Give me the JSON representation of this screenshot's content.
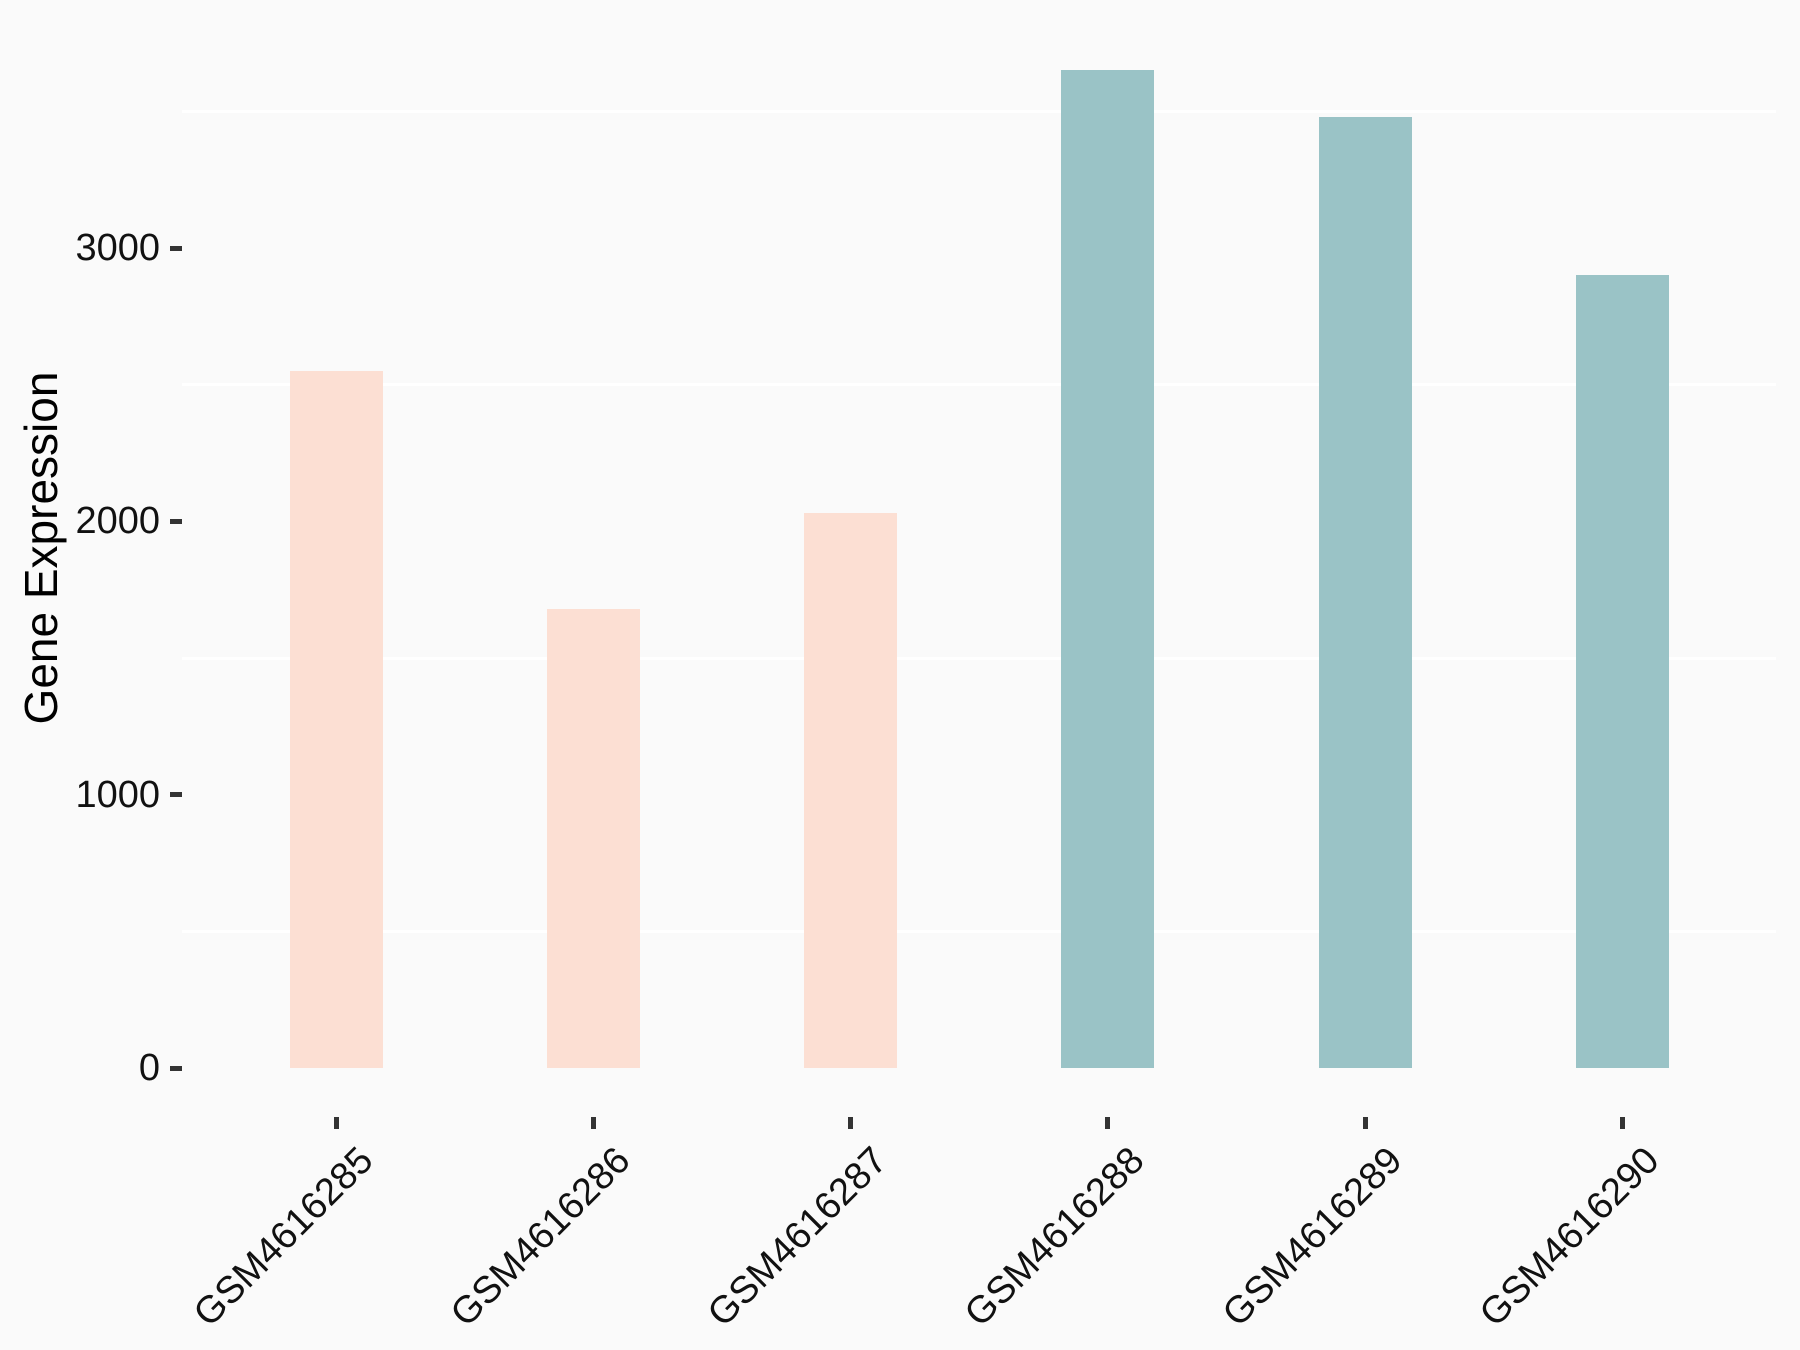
{
  "figure": {
    "background_color": "#fafafa",
    "grid_color": "#ffffff",
    "tick_mark_color": "#333333",
    "text_color": "#111111"
  },
  "chart_data": {
    "type": "bar",
    "title": "",
    "xlabel": "",
    "ylabel": "Gene Expression",
    "categories": [
      "GSM4616285",
      "GSM4616286",
      "GSM4616287",
      "GSM4616288",
      "GSM4616289",
      "GSM4616290"
    ],
    "values": [
      2550,
      1680,
      2030,
      3650,
      3480,
      2900
    ],
    "bar_colors": [
      "#fcdfd3",
      "#fcdfd3",
      "#fcdfd3",
      "#9ac3c6",
      "#9ac3c6",
      "#9ac3c6"
    ],
    "y_ticks": [
      0,
      1000,
      2000,
      3000
    ],
    "y_tick_labels": [
      "0",
      "1000",
      "2000",
      "3000"
    ],
    "y_minor_gridlines": [
      500,
      1500,
      2500,
      3500
    ],
    "ylim": [
      0,
      3840
    ],
    "x_tick_rotation_deg": 45,
    "grid": "minor-horizontal-only",
    "legend_position": "none"
  }
}
